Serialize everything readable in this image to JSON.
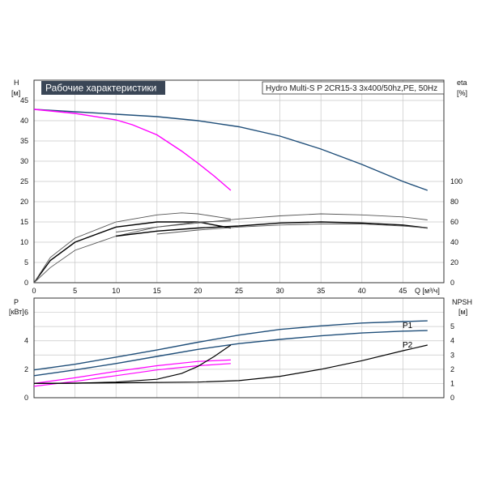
{
  "chart_data": {
    "type": "line",
    "title": "Рабочие характеристики",
    "subtitle": "Hydro Multi-S P 2CR15-3 3x400/50hz,PE, 50Hz",
    "colors": {
      "blue": "#1f4e79",
      "magenta": "#ff00ff",
      "black": "#000000",
      "grid": "#c8c8c8",
      "title_bg": "#3a4656"
    },
    "upper": {
      "ylabel_left": "H",
      "yunit_left": "[м]",
      "ylabel_right": "eta",
      "yunit_right": "[%]",
      "xlabel": "Q [м³/ч]",
      "xlim": [
        0,
        50
      ],
      "ylim": [
        0,
        50
      ],
      "x_ticks": [
        "0",
        "5",
        "10",
        "15",
        "20",
        "25",
        "30",
        "35",
        "40",
        "45"
      ],
      "y_ticks": [
        "0",
        "5",
        "10",
        "15",
        "20",
        "25",
        "30",
        "35",
        "40",
        "45"
      ],
      "y2_range": [
        0,
        100
      ],
      "y2_ticks": [
        "0",
        "20",
        "40",
        "60",
        "80",
        "100"
      ],
      "series": [
        {
          "axis": "H",
          "color": "#1f4e79",
          "x": [
            0,
            5,
            10,
            15,
            20,
            25,
            30,
            35,
            40,
            45,
            48
          ],
          "y": [
            42.8,
            42.2,
            41.6,
            41.0,
            40.0,
            38.5,
            36.2,
            33.0,
            29.2,
            25.0,
            22.8
          ]
        },
        {
          "axis": "H",
          "color": "#ff00ff",
          "x": [
            0,
            5,
            10,
            12,
            15,
            18,
            20,
            22,
            24
          ],
          "y": [
            42.8,
            41.8,
            40.2,
            39.0,
            36.5,
            32.5,
            29.5,
            26.3,
            22.8
          ]
        },
        {
          "axis": "eta",
          "color": "#000000",
          "x": [
            0,
            2,
            5,
            10,
            15,
            20,
            24
          ],
          "y": [
            0,
            22,
            40,
            55,
            60,
            60,
            54
          ]
        },
        {
          "axis": "eta",
          "color": "#555555",
          "x": [
            0,
            2,
            5,
            10,
            15,
            18,
            20,
            24
          ],
          "y": [
            0,
            25,
            44,
            60,
            67,
            69,
            68,
            63
          ]
        },
        {
          "axis": "eta",
          "color": "#555555",
          "x": [
            0,
            2,
            5,
            10,
            15,
            20,
            24
          ],
          "y": [
            0,
            15,
            32,
            46,
            55,
            60,
            61
          ]
        },
        {
          "axis": "eta",
          "color": "#000000",
          "x": [
            10,
            15,
            20,
            25,
            30,
            35,
            40,
            45,
            48
          ],
          "y": [
            46,
            51,
            54,
            56,
            59,
            60,
            59,
            57,
            54
          ]
        },
        {
          "axis": "eta",
          "color": "#555555",
          "x": [
            10,
            15,
            20,
            25,
            30,
            35,
            40,
            45,
            48
          ],
          "y": [
            50,
            55,
            59,
            63,
            66,
            68,
            67,
            65,
            62
          ]
        },
        {
          "axis": "eta",
          "color": "#555555",
          "x": [
            15,
            20,
            25,
            30,
            35,
            40,
            45,
            48
          ],
          "y": [
            48,
            52,
            55,
            57,
            58,
            58,
            56,
            54
          ]
        }
      ]
    },
    "lower": {
      "ylabel_left": "P",
      "yunit_left": "[кВт]",
      "ylabel_right": "NPSH",
      "yunit_right": "[м]",
      "xlim": [
        0,
        50
      ],
      "ylim": [
        0,
        7
      ],
      "y_ticks": [
        "0",
        "2",
        "4",
        "6"
      ],
      "y2_ticks": [
        "0",
        "1",
        "2",
        "3",
        "4",
        "5"
      ],
      "y2_range": [
        0,
        6
      ],
      "series": [
        {
          "name": "P1",
          "color": "#1f4e79",
          "x": [
            0,
            5,
            10,
            15,
            20,
            25,
            30,
            35,
            40,
            45,
            48
          ],
          "y": [
            1.95,
            2.35,
            2.85,
            3.35,
            3.9,
            4.4,
            4.8,
            5.05,
            5.25,
            5.35,
            5.4
          ]
        },
        {
          "name": "P2",
          "color": "#1f4e79",
          "x": [
            0,
            5,
            10,
            15,
            20,
            25,
            30,
            35,
            40,
            45,
            48
          ],
          "y": [
            1.55,
            1.95,
            2.4,
            2.9,
            3.4,
            3.8,
            4.1,
            4.35,
            4.55,
            4.68,
            4.72
          ]
        },
        {
          "color": "#ff00ff",
          "x": [
            0,
            5,
            10,
            15,
            20,
            24
          ],
          "y": [
            1.0,
            1.4,
            1.85,
            2.25,
            2.55,
            2.65
          ]
        },
        {
          "color": "#ff00ff",
          "x": [
            0,
            5,
            10,
            15,
            20,
            24
          ],
          "y": [
            0.8,
            1.15,
            1.55,
            1.95,
            2.25,
            2.4
          ]
        },
        {
          "color": "#000000",
          "axis": "NPSH",
          "x": [
            0,
            5,
            10,
            15,
            18,
            20,
            22,
            24
          ],
          "y": [
            1.0,
            1.02,
            1.1,
            1.3,
            1.7,
            2.2,
            2.9,
            3.7
          ]
        },
        {
          "color": "#000000",
          "axis": "NPSH",
          "x": [
            0,
            10,
            20,
            25,
            30,
            35,
            40,
            45,
            48
          ],
          "y": [
            1.0,
            1.05,
            1.1,
            1.2,
            1.5,
            2.0,
            2.6,
            3.3,
            3.7
          ]
        }
      ]
    }
  }
}
